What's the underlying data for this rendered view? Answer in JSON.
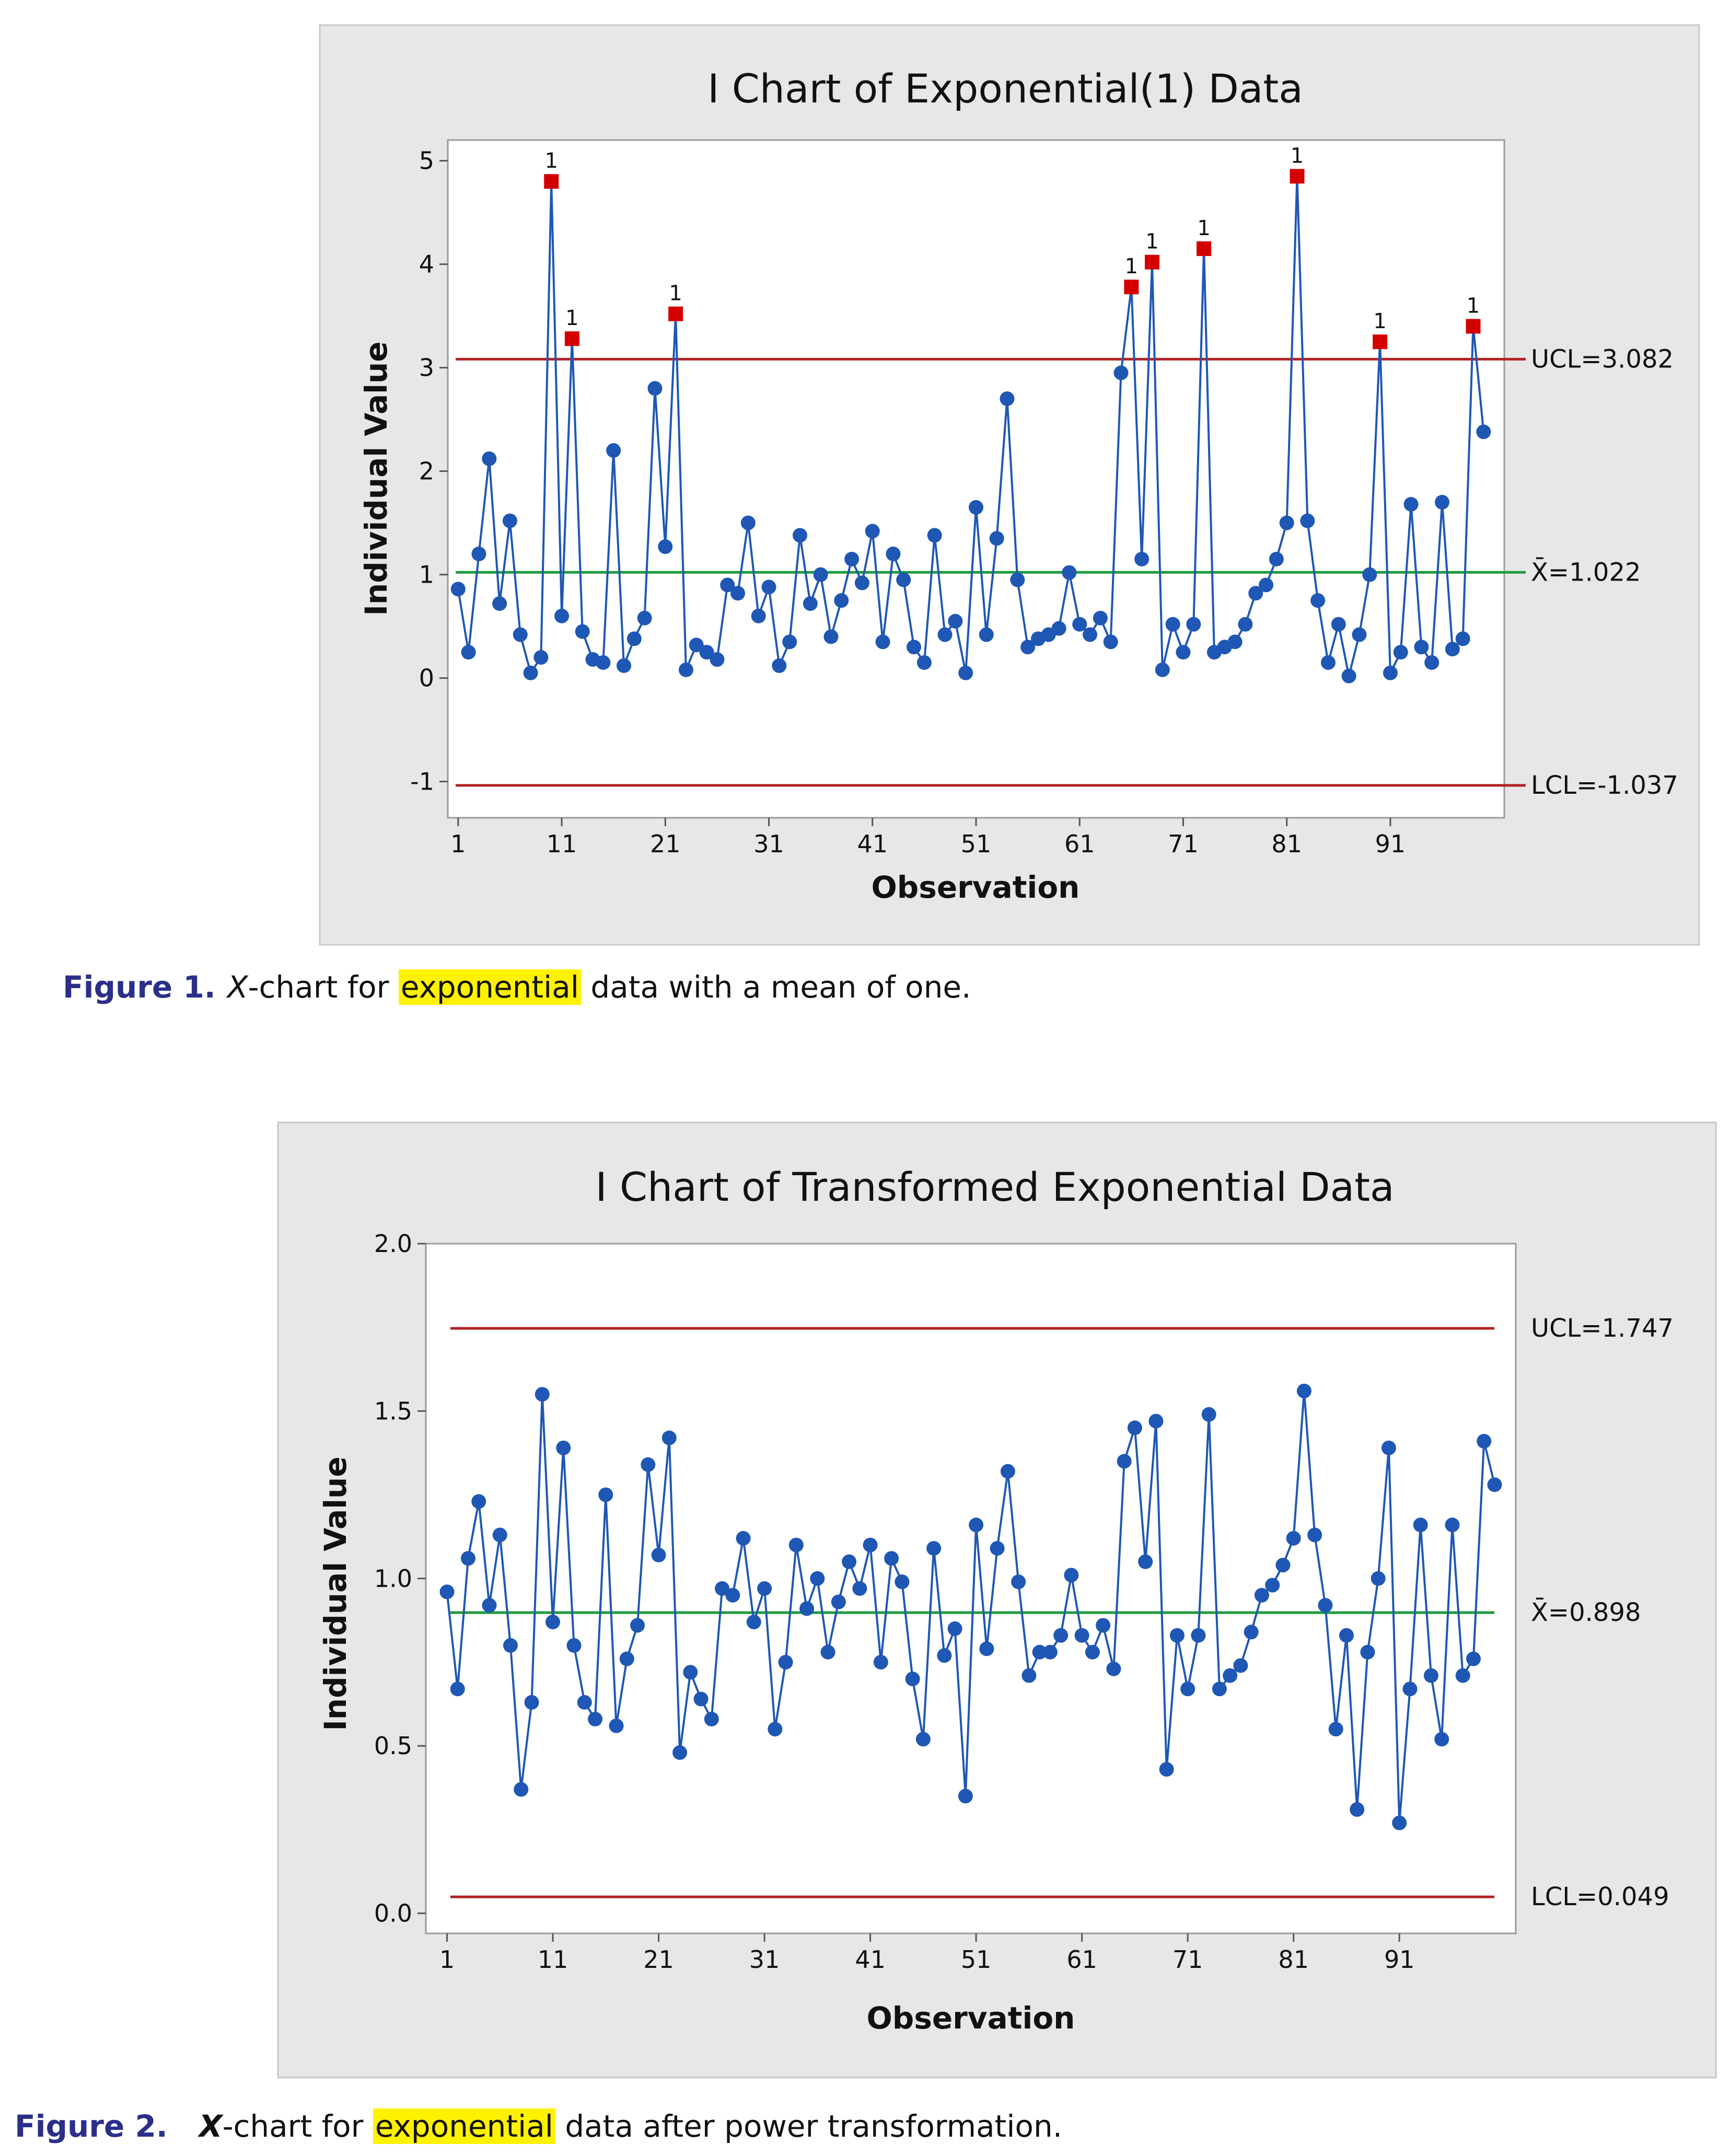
{
  "colors": {
    "series": "#1f57b4",
    "center_line": "#1e9a3a",
    "limit_line": "#b22222",
    "flag_point": "#d40000",
    "caption_label": "#2b2f8a",
    "highlight": "#fff200"
  },
  "figures": [
    {
      "caption": {
        "label": "Figure 1.",
        "x": "X",
        "text1": "-chart for ",
        "highlight": "exponential",
        "text2": " data with a mean of one."
      }
    },
    {
      "caption": {
        "label": "Figure 2.",
        "x": "X",
        "text1": "-chart for ",
        "highlight": "exponential",
        "text2": " data after power transformation."
      }
    }
  ],
  "chart_data": [
    {
      "type": "line",
      "title": "I Chart of Exponential(1) Data",
      "xlabel": "Observation",
      "ylabel": "Individual Value",
      "xlim": [
        0,
        102
      ],
      "ylim": [
        -1.35,
        5.2
      ],
      "x_ticks": [
        1,
        11,
        21,
        31,
        41,
        51,
        61,
        71,
        81,
        91
      ],
      "y_ticks": [
        -1,
        0,
        1,
        2,
        3,
        4,
        5
      ],
      "center_line": {
        "label": "X̄=1.022",
        "value": 1.022
      },
      "ucl": {
        "label": "UCL=3.082",
        "value": 3.082
      },
      "lcl": {
        "label": "LCL=-1.037",
        "value": -1.037
      },
      "flag_text": "1",
      "flagged_indices": [
        10,
        12,
        22,
        66,
        68,
        73,
        82,
        90,
        99
      ],
      "values": [
        0.86,
        0.25,
        1.2,
        2.12,
        0.72,
        1.52,
        0.42,
        0.05,
        0.2,
        4.8,
        0.6,
        3.28,
        0.45,
        0.18,
        0.15,
        2.2,
        0.12,
        0.38,
        0.58,
        2.8,
        1.27,
        3.52,
        0.08,
        0.32,
        0.25,
        0.18,
        0.9,
        0.82,
        1.5,
        0.6,
        0.88,
        0.12,
        0.35,
        1.38,
        0.72,
        1.0,
        0.4,
        0.75,
        1.15,
        0.92,
        1.42,
        0.35,
        1.2,
        0.95,
        0.3,
        0.15,
        1.38,
        0.42,
        0.55,
        0.05,
        1.65,
        0.42,
        1.35,
        2.7,
        0.95,
        0.3,
        0.38,
        0.42,
        0.48,
        1.02,
        0.52,
        0.42,
        0.58,
        0.35,
        2.95,
        3.78,
        1.15,
        4.02,
        0.08,
        0.52,
        0.25,
        0.52,
        4.15,
        0.25,
        0.3,
        0.35,
        0.52,
        0.82,
        0.9,
        1.15,
        1.5,
        4.85,
        1.52,
        0.75,
        0.15,
        0.52,
        0.02,
        0.42,
        1.0,
        3.25,
        0.05,
        0.25,
        1.68,
        0.3,
        0.15,
        1.7,
        0.28,
        0.38,
        3.4,
        2.38
      ]
    },
    {
      "type": "line",
      "title": "I Chart of Transformed Exponential Data",
      "xlabel": "Observation",
      "ylabel": "Individual Value",
      "xlim": [
        -1,
        102
      ],
      "ylim": [
        -0.06,
        2.0
      ],
      "x_ticks": [
        1,
        11,
        21,
        31,
        41,
        51,
        61,
        71,
        81,
        91
      ],
      "y_ticks": [
        0.0,
        0.5,
        1.0,
        1.5,
        2.0
      ],
      "y_tick_labels": [
        "0.0",
        "0.5",
        "1.0",
        "1.5",
        "2.0"
      ],
      "center_line": {
        "label": "X̄=0.898",
        "value": 0.898
      },
      "ucl": {
        "label": "UCL=1.747",
        "value": 1.747
      },
      "lcl": {
        "label": "LCL=0.049",
        "value": 0.049
      },
      "flagged_indices": [],
      "values": [
        0.96,
        0.67,
        1.06,
        1.23,
        0.92,
        1.13,
        0.8,
        0.37,
        0.63,
        1.55,
        0.87,
        1.39,
        0.8,
        0.63,
        0.58,
        1.25,
        0.56,
        0.76,
        0.86,
        1.34,
        1.07,
        1.42,
        0.48,
        0.72,
        0.64,
        0.58,
        0.97,
        0.95,
        1.12,
        0.87,
        0.97,
        0.55,
        0.75,
        1.1,
        0.91,
        1.0,
        0.78,
        0.93,
        1.05,
        0.97,
        1.1,
        0.75,
        1.06,
        0.99,
        0.7,
        0.52,
        1.09,
        0.77,
        0.85,
        0.35,
        1.16,
        0.79,
        1.09,
        1.32,
        0.99,
        0.71,
        0.78,
        0.78,
        0.83,
        1.01,
        0.83,
        0.78,
        0.86,
        0.73,
        1.35,
        1.45,
        1.05,
        1.47,
        0.43,
        0.83,
        0.67,
        0.83,
        1.49,
        0.67,
        0.71,
        0.74,
        0.84,
        0.95,
        0.98,
        1.04,
        1.12,
        1.56,
        1.13,
        0.92,
        0.55,
        0.83,
        0.31,
        0.78,
        1.0,
        1.39,
        0.27,
        0.67,
        1.16,
        0.71,
        0.52,
        1.16,
        0.71,
        0.76,
        1.41,
        1.28
      ]
    }
  ]
}
